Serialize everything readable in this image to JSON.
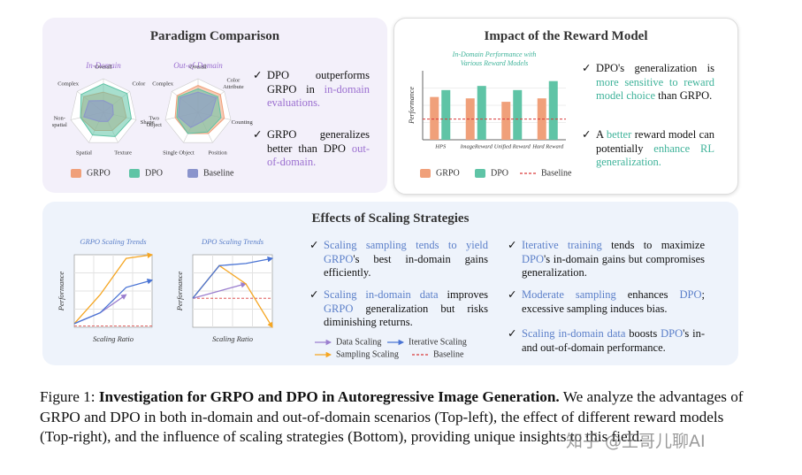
{
  "panels": {
    "paradigm": {
      "title": "Paradigm Comparison",
      "charts": [
        {
          "type": "radar",
          "title": "In-Domain",
          "title_color": "#9b6fd0",
          "rlim": [
            0,
            1
          ],
          "axes": [
            "Overall",
            "Color",
            "Shape",
            "Texture",
            "Spatial",
            "Non-\nspatial",
            "Complex"
          ],
          "series": [
            {
              "name": "GRPO",
              "color": "#f0a07a",
              "values": [
                0.6,
                0.7,
                0.7,
                0.6,
                0.6,
                0.7,
                0.75
              ]
            },
            {
              "name": "DPO",
              "color": "#5fc4a6",
              "values": [
                0.85,
                0.9,
                0.85,
                0.8,
                0.75,
                0.7,
                0.85
              ]
            },
            {
              "name": "Baseline",
              "color": "#8a94cc",
              "values": [
                0.35,
                0.35,
                0.3,
                0.3,
                0.3,
                0.6,
                0.55
              ]
            }
          ]
        },
        {
          "type": "radar",
          "title": "Out-of-Domain",
          "title_color": "#9b6fd0",
          "rlim": [
            0,
            1
          ],
          "axes": [
            "Overall",
            "Color\nAttribute",
            "Counting",
            "Position",
            "Single Object",
            "Two\nObject",
            "Complex"
          ],
          "series": [
            {
              "name": "GRPO",
              "color": "#f0a07a",
              "values": [
                0.8,
                0.85,
                0.8,
                0.7,
                0.7,
                0.7,
                0.8
              ]
            },
            {
              "name": "DPO",
              "color": "#5fc4a6",
              "values": [
                0.7,
                0.75,
                0.7,
                0.65,
                0.7,
                0.65,
                0.75
              ]
            },
            {
              "name": "Baseline",
              "color": "#8a94cc",
              "values": [
                0.6,
                0.7,
                0.4,
                0.3,
                0.5,
                0.6,
                0.7
              ]
            }
          ]
        }
      ],
      "bullets": [
        [
          {
            "text": "DPO outperforms GRPO in "
          },
          {
            "text": "in-domain evaluations.",
            "color": "#9b6fd0"
          }
        ],
        [
          {
            "text": "GRPO generalizes better than DPO "
          },
          {
            "text": "out-of-domain.",
            "color": "#9b6fd0"
          }
        ]
      ]
    },
    "reward": {
      "title": "Impact of the Reward Model",
      "chart": {
        "type": "bar",
        "title": [
          "In-Domain Performance with",
          "Various Reward Models"
        ],
        "title_color": "#3fb39a",
        "y_label": "Performance",
        "ylim": [
          0,
          1
        ],
        "categories": [
          "HPS",
          "ImageReward",
          "Unified Reward",
          "Hard Reward"
        ],
        "series": [
          {
            "name": "GRPO",
            "color": "#f0a07a",
            "values": [
              0.62,
              0.6,
              0.55,
              0.6
            ]
          },
          {
            "name": "DPO",
            "color": "#5fc4a6",
            "values": [
              0.72,
              0.78,
              0.72,
              0.85
            ]
          }
        ],
        "baseline": {
          "name": "Baseline",
          "color": "#d93a3a",
          "value": 0.3
        }
      },
      "bullets": [
        [
          {
            "text": "DPO's generalization is "
          },
          {
            "text": "more sensitive to reward model choice",
            "color": "#3fb39a"
          },
          {
            "text": " than GRPO."
          }
        ],
        [
          {
            "text": "A "
          },
          {
            "text": "better",
            "color": "#3fb39a"
          },
          {
            "text": " reward model can potentially "
          },
          {
            "text": "enhance RL generalization.",
            "color": "#3fb39a"
          }
        ]
      ]
    },
    "scaling": {
      "title": "Effects of Scaling Strategies",
      "charts": [
        {
          "type": "line",
          "title": "GRPO Scaling Trends",
          "title_color": "#5b7fc9",
          "x_label": "Scaling Ratio",
          "y_label": "Performance",
          "x": [
            0,
            1,
            2,
            3
          ],
          "xlim": [
            0,
            3
          ],
          "ylim": [
            0,
            1
          ],
          "series": [
            {
              "name": "Data Scaling",
              "color": "#9b7fcf",
              "values": [
                0.05,
                0.2,
                0.45,
                null
              ]
            },
            {
              "name": "Sampling Scaling",
              "color": "#f5a623",
              "values": [
                0.05,
                0.45,
                0.95,
                1.0
              ]
            },
            {
              "name": "Iterative Scaling",
              "color": "#4a74d4",
              "values": [
                0.05,
                0.2,
                0.55,
                0.65
              ]
            }
          ],
          "baseline": {
            "name": "Baseline",
            "color": "#d93a3a",
            "value": 0.02
          }
        },
        {
          "type": "line",
          "title": "DPO Scaling Trends",
          "title_color": "#5b7fc9",
          "x_label": "Scaling Ratio",
          "y_label": "Performance",
          "x": [
            0,
            1,
            2,
            3
          ],
          "xlim": [
            0,
            3
          ],
          "ylim": [
            0,
            1
          ],
          "series": [
            {
              "name": "Data Scaling",
              "color": "#9b7fcf",
              "values": [
                0.4,
                0.5,
                0.6,
                null
              ]
            },
            {
              "name": "Sampling Scaling",
              "color": "#f5a623",
              "values": [
                0.4,
                0.85,
                0.6,
                0.0
              ]
            },
            {
              "name": "Iterative Scaling",
              "color": "#4a74d4",
              "values": [
                0.4,
                0.85,
                0.88,
                0.95
              ]
            }
          ],
          "baseline": {
            "name": "Baseline",
            "color": "#d93a3a",
            "value": 0.4
          }
        }
      ],
      "bullets": [
        [
          {
            "text": "Scaling sampling tends to yield",
            "color": "#5b7fc9"
          },
          {
            "text": " "
          },
          {
            "text": "GRPO",
            "color": "#5b7fc9"
          },
          {
            "text": "'s best in-domain gains efficiently."
          }
        ],
        [
          {
            "text": "Scaling in-domain data",
            "color": "#5b7fc9"
          },
          {
            "text": " improves "
          },
          {
            "text": "GRPO",
            "color": "#5b7fc9"
          },
          {
            "text": " generalization but risks diminishing returns."
          }
        ],
        [
          {
            "text": "Iterative training",
            "color": "#5b7fc9"
          },
          {
            "text": " tends to maximize "
          },
          {
            "text": "DPO",
            "color": "#5b7fc9"
          },
          {
            "text": "'s in-domain gains but compromises generalization."
          }
        ],
        [
          {
            "text": "Moderate sampling",
            "color": "#5b7fc9"
          },
          {
            "text": " enhances "
          },
          {
            "text": "DPO",
            "color": "#5b7fc9"
          },
          {
            "text": "; excessive sampling induces bias."
          }
        ],
        [
          {
            "text": "Scaling in-domain data",
            "color": "#5b7fc9"
          },
          {
            "text": " boosts "
          },
          {
            "text": "DPO",
            "color": "#5b7fc9"
          },
          {
            "text": "'s in- and out-of-domain performance."
          }
        ]
      ]
    }
  },
  "caption": {
    "label": "Figure 1:",
    "title": "Investigation for GRPO and DPO in Autoregressive Image Generation.",
    "text": "We analyze the advantages of GRPO and DPO in both in-domain and out-of-domain scenarios (Top-left), the effect of different reward models (Top-right), and the influence of scaling strategies (Bottom), providing unique insights to this field."
  },
  "watermark": "知乎 @王哥儿聊AI"
}
